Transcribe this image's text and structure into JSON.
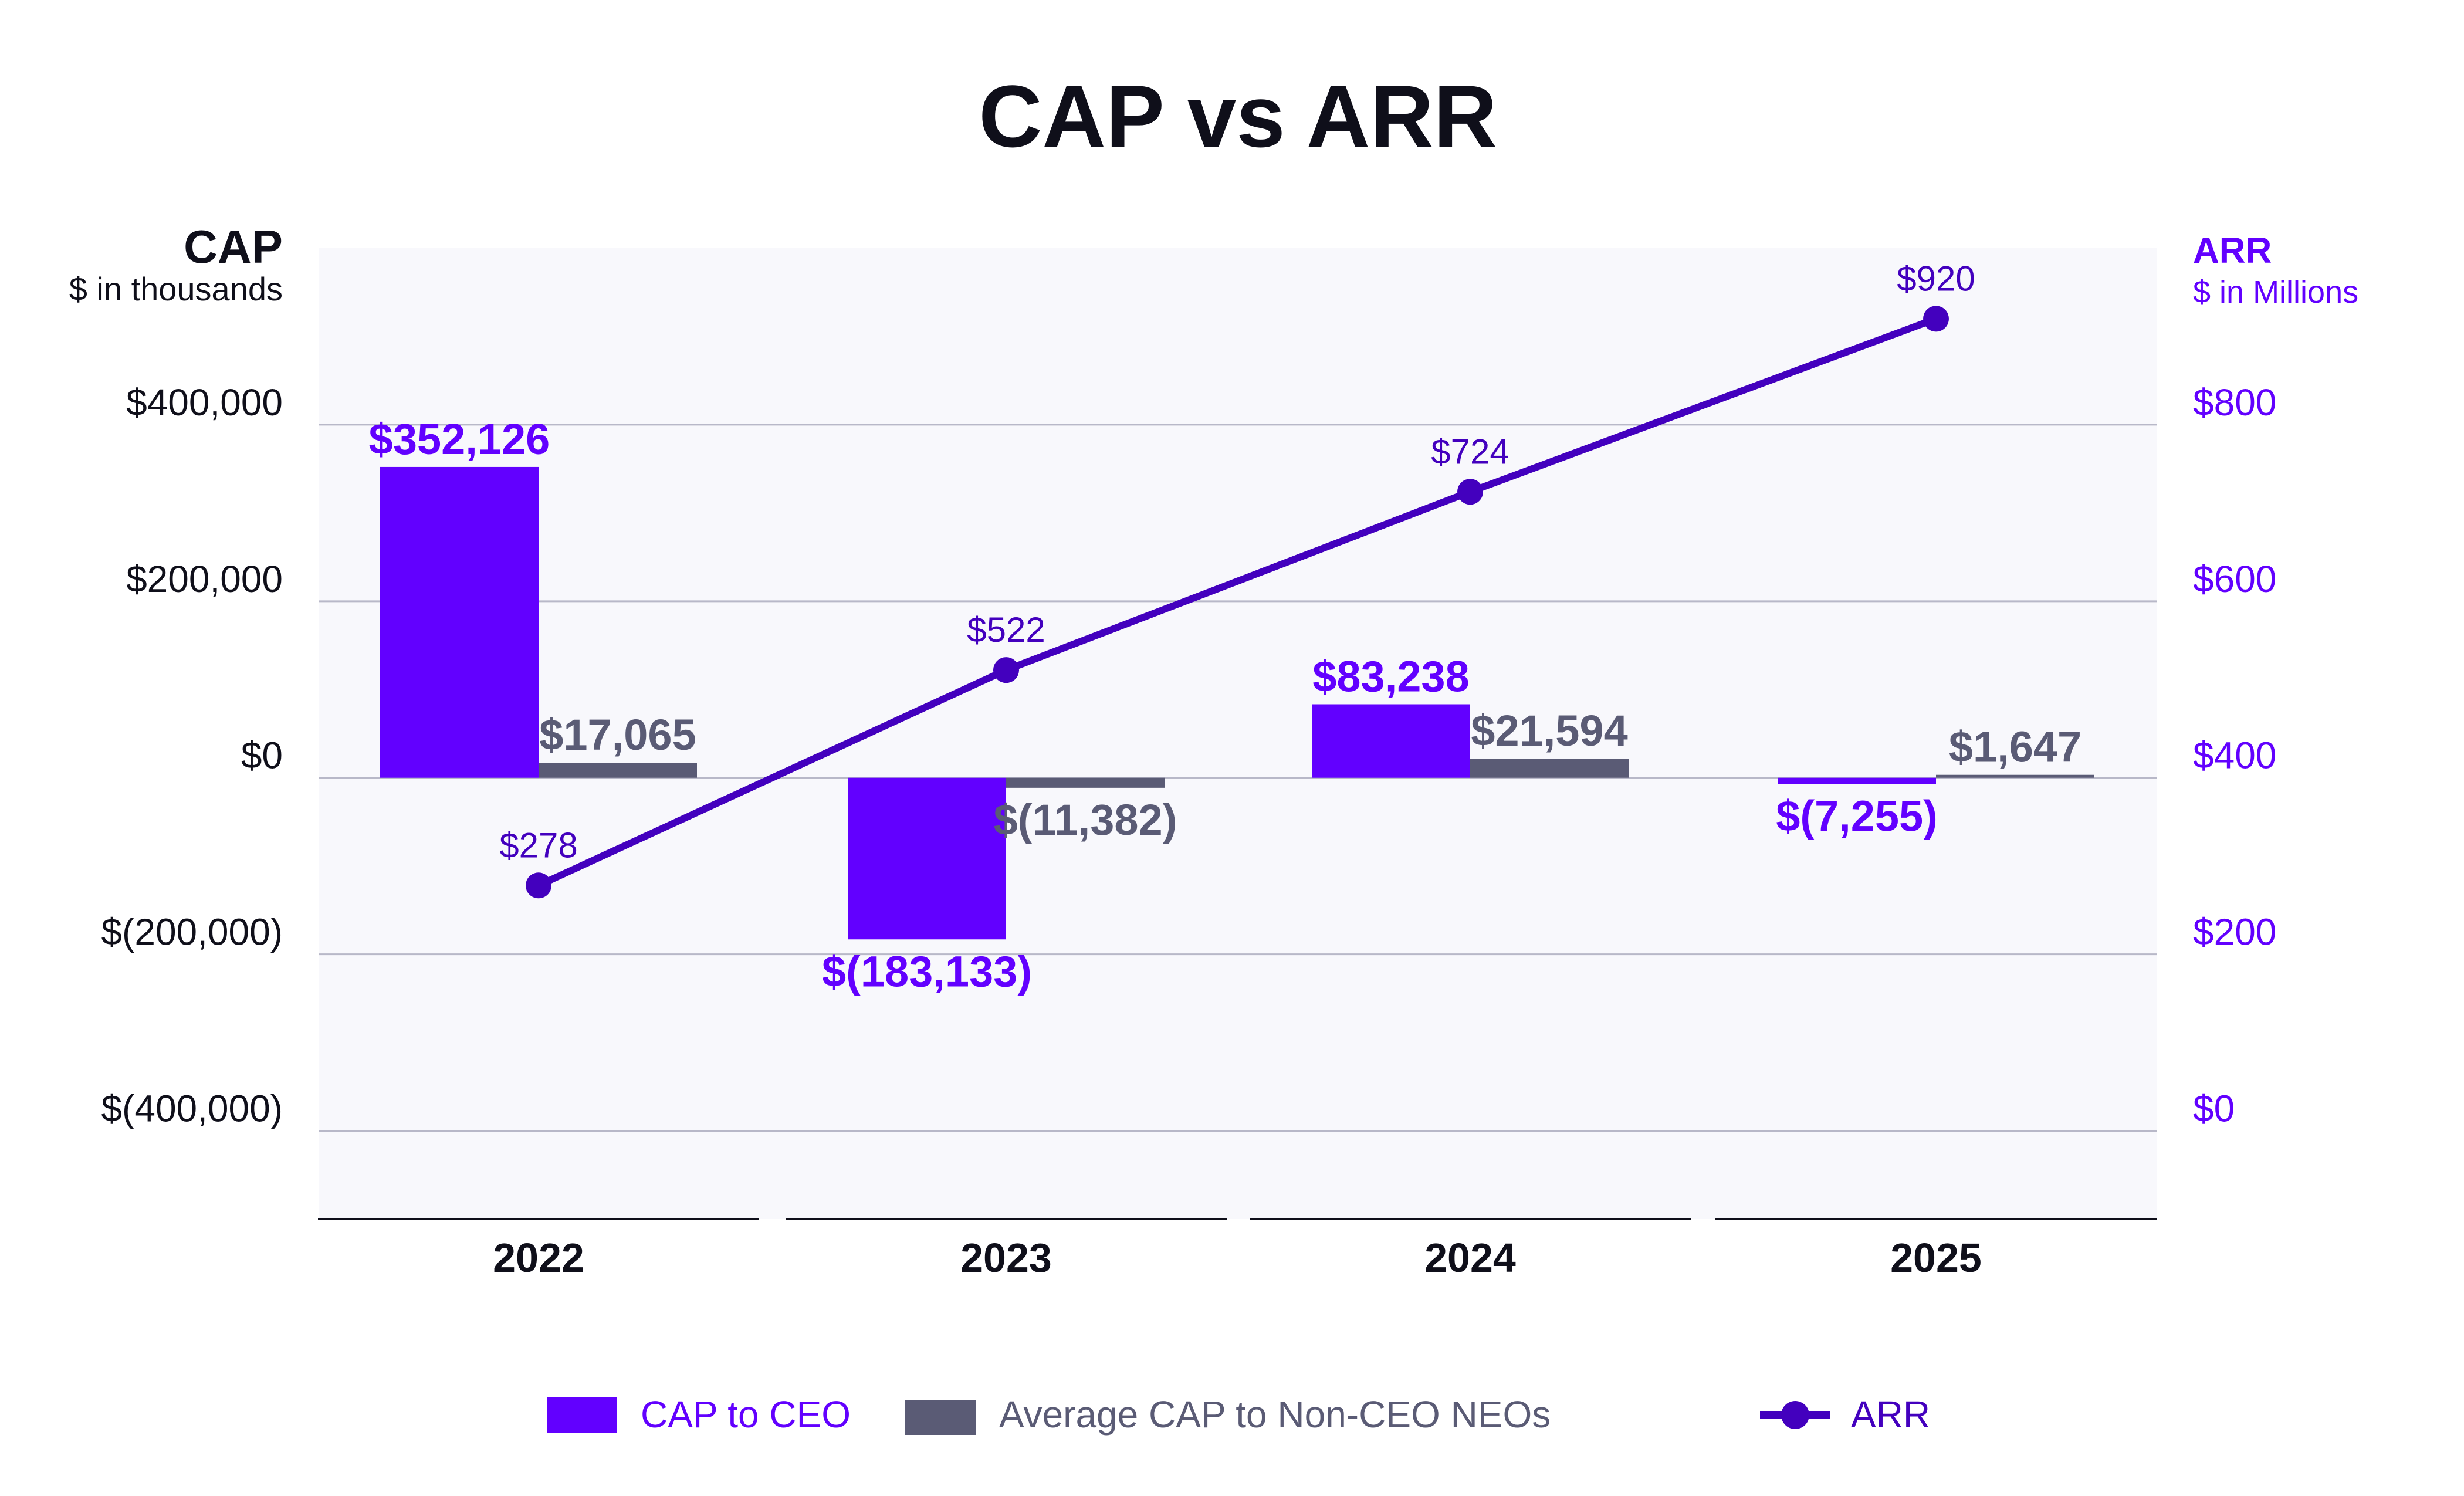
{
  "chart_data": {
    "type": "bar+line",
    "title": "CAP vs ARR",
    "categories": [
      "2022",
      "2023",
      "2024",
      "2025"
    ],
    "left_axis": {
      "label": "CAP",
      "unit": "$ in thousands",
      "ylim": [
        -500000,
        600000
      ],
      "ticks": [
        400000,
        200000,
        0,
        -200000,
        -400000
      ],
      "tick_labels": [
        "$400,000",
        "$200,000",
        "$0",
        "$(200,000)",
        "$(400,000)"
      ]
    },
    "right_axis": {
      "label": "ARR",
      "unit": "$ in Millions",
      "ylim": [
        -100,
        1000
      ],
      "ticks": [
        800,
        600,
        400,
        200,
        0
      ],
      "tick_labels": [
        "$800",
        "$600",
        "$400",
        "$200",
        "$0"
      ]
    },
    "grid": true,
    "legend_position": "bottom",
    "series": [
      {
        "name": "CAP to CEO",
        "type": "bar",
        "axis": "left",
        "color": "#6200FF",
        "values": [
          352126,
          -183133,
          83238,
          -7255
        ],
        "labels": [
          "$352,126",
          "$(183,133)",
          "$83,238",
          "$(7,255)"
        ]
      },
      {
        "name": "Average CAP to Non-CEO NEOs",
        "type": "bar",
        "axis": "left",
        "color": "#5A5B75",
        "values": [
          17065,
          -11382,
          21594,
          1647
        ],
        "labels": [
          "$17,065",
          "$(11,382)",
          "$21,594",
          "$1,647"
        ]
      },
      {
        "name": "ARR",
        "type": "line",
        "axis": "right",
        "color": "#4300BE",
        "values": [
          278,
          522,
          724,
          920
        ],
        "labels": [
          "$278",
          "$522",
          "$724",
          "$920"
        ]
      }
    ]
  }
}
